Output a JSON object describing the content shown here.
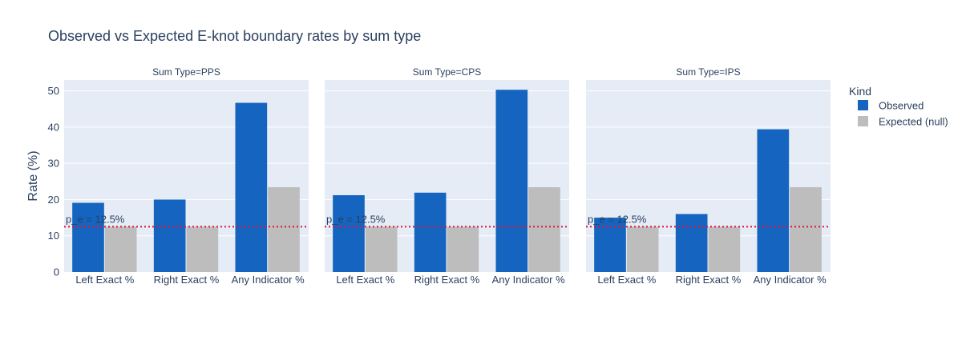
{
  "chart_data": {
    "type": "bar",
    "title": "Observed vs Expected E-knot boundary rates by sum type",
    "ylabel": "Rate (%)",
    "ylim": [
      0,
      53
    ],
    "yticks": [
      0,
      10,
      20,
      30,
      40,
      50
    ],
    "grid": true,
    "categories": [
      "Left Exact %",
      "Right Exact %",
      "Any Indicator %"
    ],
    "legend": {
      "title": "Kind",
      "placement": "right",
      "entries": [
        {
          "name": "Observed",
          "color": "#1565C0"
        },
        {
          "name": "Expected (null)",
          "color": "#BDBDBD"
        }
      ]
    },
    "reference_line": {
      "value": 12.5,
      "label": "p_e = 12.5%",
      "color": "#DC143C",
      "style": "dotted"
    },
    "facets": [
      {
        "title": "Sum Type=PPS",
        "series": [
          {
            "name": "Observed",
            "values": [
              19.1,
              20.0,
              46.7
            ]
          },
          {
            "name": "Expected (null)",
            "values": [
              12.5,
              12.5,
              23.4
            ]
          }
        ]
      },
      {
        "title": "Sum Type=CPS",
        "series": [
          {
            "name": "Observed",
            "values": [
              21.2,
              21.9,
              50.3
            ]
          },
          {
            "name": "Expected (null)",
            "values": [
              12.5,
              12.5,
              23.4
            ]
          }
        ]
      },
      {
        "title": "Sum Type=IPS",
        "series": [
          {
            "name": "Observed",
            "values": [
              15.0,
              16.0,
              39.4
            ]
          },
          {
            "name": "Expected (null)",
            "values": [
              12.5,
              12.5,
              23.4
            ]
          }
        ]
      }
    ]
  }
}
